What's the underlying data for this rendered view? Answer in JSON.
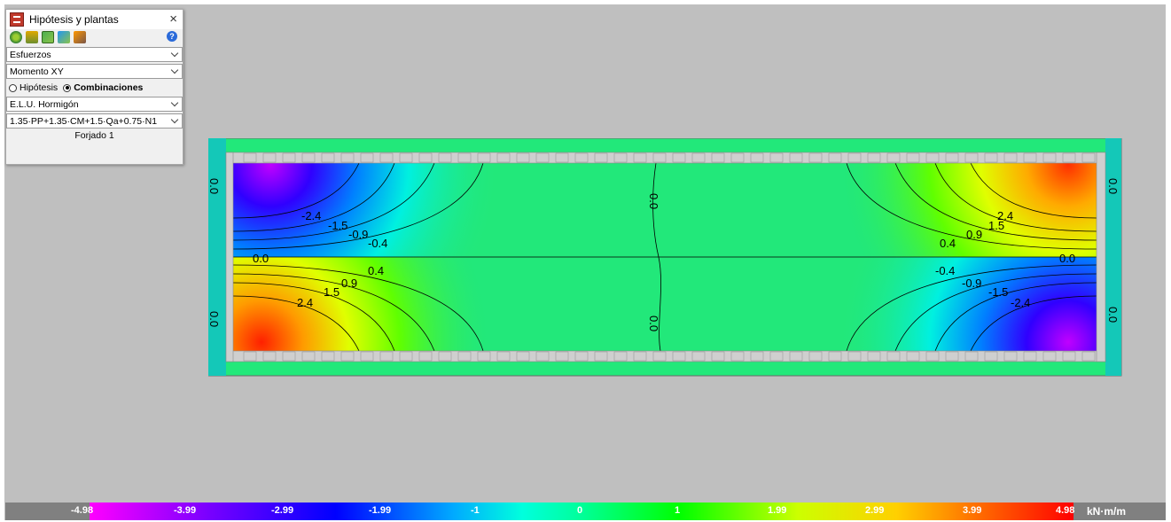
{
  "panel": {
    "title": "Hipótesis y plantas",
    "close_label": "×",
    "toolbar_icons": [
      "hypothesis-icon",
      "floor-plan-icon",
      "contour-map-icon",
      "view-icon",
      "scene-icon"
    ],
    "help_label": "?",
    "type_select": "Esfuerzos",
    "magnitude_select": "Momento XY",
    "radio_hipotesis": "Hipótesis",
    "radio_combinaciones": "Combinaciones",
    "selected_radio": "Combinaciones",
    "state_select": "E.L.U. Hormigón",
    "combination_select": "1.35·PP+1.35·CM+1.5·Qa+0.75·N1",
    "floor": "Forjado 1"
  },
  "contour_labels": {
    "upper_left": [
      "-2.4",
      "-1.5",
      "-0.9",
      "-0.4"
    ],
    "upper_right": [
      "2.4",
      "1.5",
      "0.9",
      "0.4"
    ],
    "lower_left": [
      "0.4",
      "0.9",
      "1.5",
      "2.4"
    ],
    "lower_right": [
      "-0.4",
      "-0.9",
      "-1.5",
      "-2.4"
    ],
    "zero": "0.0"
  },
  "legend": {
    "values": [
      "-4.98",
      "-3.99",
      "-2.99",
      "-1.99",
      "-1",
      "0",
      "1",
      "1.99",
      "2.99",
      "3.99",
      "4.98"
    ],
    "unit": "kN·m/m"
  },
  "colors": {
    "background": "#bfbfbf",
    "slab_green": "#22e87a",
    "min_magenta": "#ff00ff",
    "max_red": "#ff0000"
  }
}
